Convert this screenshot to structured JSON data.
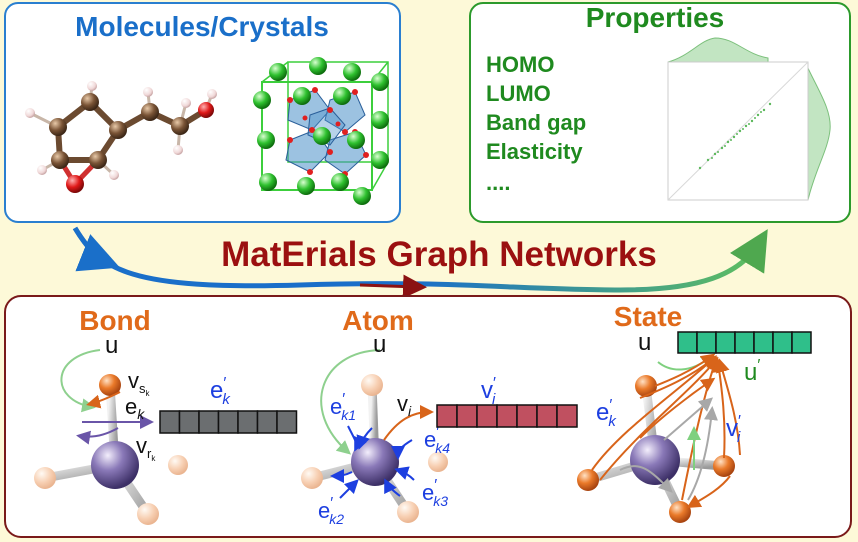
{
  "top_left_panel": {
    "title": "Molecules/Crystals"
  },
  "top_right_panel": {
    "title": "Properties",
    "items": [
      "HOMO",
      "LUMO",
      "Band gap",
      "Elasticity",
      "...."
    ]
  },
  "main_title": "MatErials Graph Networks",
  "bottom_panel": {
    "bond": {
      "title": "Bond",
      "u": "u",
      "v_s": "v",
      "v_s_sub": "s",
      "v_s_subsub": "k",
      "e_k": "e",
      "e_k_sub": "k",
      "v_r": "v",
      "v_r_sub": "r",
      "v_r_subsub": "k",
      "output": "e",
      "output_prime": "′",
      "output_sub": "k"
    },
    "atom": {
      "title": "Atom",
      "u": "u",
      "v_i": "v",
      "v_i_sub": "i",
      "output": "v",
      "output_prime": "′",
      "output_sub": "i",
      "edges": [
        {
          "base": "e",
          "prime": "′",
          "sub": "k1"
        },
        {
          "base": "e",
          "prime": "′",
          "sub": "k4"
        },
        {
          "base": "e",
          "prime": "′",
          "sub": "k3"
        },
        {
          "base": "e",
          "prime": "′",
          "sub": "k2"
        }
      ]
    },
    "state": {
      "title": "State",
      "u": "u",
      "output": "u",
      "output_prime": "′",
      "e_k": "e",
      "e_k_prime": "′",
      "e_k_sub": "k",
      "v_i": "v",
      "v_i_prime": "′",
      "v_i_sub": "i"
    }
  },
  "colors": {
    "blue_title": "#1a6fc9",
    "green_title": "#1f8a1f",
    "dark_red_title": "#9b1010",
    "orange_title": "#e06a1a",
    "panel_border_red": "#7a1a1a",
    "grey_vector": "#6b6e70",
    "red_vector": "#c05060",
    "green_vector": "#2fbf8a"
  }
}
